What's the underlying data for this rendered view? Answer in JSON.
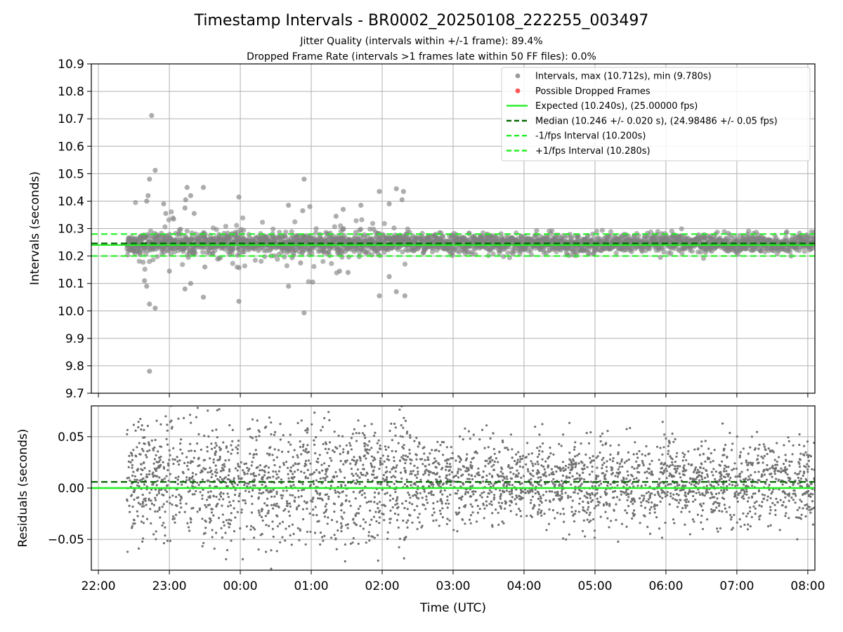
{
  "title": "Timestamp Intervals - BR0002_20250108_222255_003497",
  "subtitle_line1": "Jitter Quality (intervals within +/-1 frame): 89.4%",
  "subtitle_line2": "Dropped Frame Rate (intervals >1 frames late within 50 FF files): 0.0%",
  "colors": {
    "points": "#808080",
    "dropped": "#ff4040",
    "expected": "#22ee22",
    "median": "#006400",
    "interval": "#22ee22"
  },
  "chart_data": [
    {
      "type": "scatter",
      "panel": "intervals",
      "ylabel": "Intervals (seconds)",
      "ylim": [
        9.7,
        10.9
      ],
      "yticks": [
        9.7,
        9.8,
        9.9,
        10.0,
        10.1,
        10.2,
        10.3,
        10.4,
        10.5,
        10.6,
        10.7,
        10.8,
        10.9
      ],
      "ytick_labels": [
        "9.7",
        "9.8",
        "9.9",
        "10.0",
        "10.1",
        "10.2",
        "10.3",
        "10.4",
        "10.5",
        "10.6",
        "10.7",
        "10.8",
        "10.9"
      ],
      "xlim_hours": [
        -2.1,
        8.1
      ],
      "grid": true,
      "legend_position": "top-right",
      "legend": [
        {
          "label": "Intervals, max (10.712s), min (9.780s)",
          "kind": "dot",
          "color": "#999999"
        },
        {
          "label": "Possible Dropped Frames",
          "kind": "dot",
          "color": "#ff5555"
        },
        {
          "label": "Expected (10.240s), (25.00000 fps)",
          "kind": "solid",
          "color": "#22ee22"
        },
        {
          "label": "Median (10.246 +/- 0.020 s), (24.98486 +/- 0.05 fps)",
          "kind": "dashed",
          "color": "#006400"
        },
        {
          "label": "-1/fps Interval (10.200s)",
          "kind": "dashed",
          "color": "#22ee22"
        },
        {
          "label": "+1/fps Interval (10.280s)",
          "kind": "dashed",
          "color": "#22ee22"
        }
      ],
      "lines": {
        "expected": 10.24,
        "median": 10.246,
        "minus_one_fps": 10.2,
        "plus_one_fps": 10.28
      },
      "series_range_hours": [
        -1.6,
        8.1
      ],
      "max_interval": 10.712,
      "min_interval": 9.78,
      "outliers": [
        {
          "x": -1.25,
          "y": 10.712
        },
        {
          "x": -1.2,
          "y": 10.512
        },
        {
          "x": -1.28,
          "y": 10.48
        },
        {
          "x": -1.3,
          "y": 10.42
        },
        {
          "x": -1.32,
          "y": 10.4
        },
        {
          "x": -1.28,
          "y": 9.78
        },
        {
          "x": -1.2,
          "y": 10.01
        },
        {
          "x": -1.28,
          "y": 10.025
        },
        {
          "x": -1.32,
          "y": 10.09
        },
        {
          "x": -1.35,
          "y": 10.11
        },
        {
          "x": -1.08,
          "y": 10.39
        },
        {
          "x": -1.05,
          "y": 10.355
        },
        {
          "x": -0.75,
          "y": 10.45
        },
        {
          "x": -0.7,
          "y": 10.42
        },
        {
          "x": -0.77,
          "y": 10.405
        },
        {
          "x": -0.78,
          "y": 10.375
        },
        {
          "x": -0.65,
          "y": 10.355
        },
        {
          "x": -0.52,
          "y": 10.45
        },
        {
          "x": -0.52,
          "y": 10.05
        },
        {
          "x": -0.78,
          "y": 10.08
        },
        {
          "x": -0.7,
          "y": 10.1
        },
        {
          "x": -0.02,
          "y": 10.415
        },
        {
          "x": -0.02,
          "y": 10.035
        },
        {
          "x": 0.68,
          "y": 10.385
        },
        {
          "x": 0.68,
          "y": 10.09
        },
        {
          "x": 0.9,
          "y": 10.48
        },
        {
          "x": 0.88,
          "y": 10.365
        },
        {
          "x": 0.98,
          "y": 10.38
        },
        {
          "x": 0.9,
          "y": 9.993
        },
        {
          "x": 1.02,
          "y": 10.105
        },
        {
          "x": 1.35,
          "y": 10.345
        },
        {
          "x": 1.45,
          "y": 10.37
        },
        {
          "x": 1.7,
          "y": 10.385
        },
        {
          "x": 1.96,
          "y": 10.435
        },
        {
          "x": 1.96,
          "y": 10.055
        },
        {
          "x": 2.1,
          "y": 10.39
        },
        {
          "x": 2.2,
          "y": 10.445
        },
        {
          "x": 2.3,
          "y": 10.435
        },
        {
          "x": 2.28,
          "y": 10.405
        },
        {
          "x": 2.1,
          "y": 10.125
        },
        {
          "x": 2.2,
          "y": 10.07
        },
        {
          "x": 2.32,
          "y": 10.055
        },
        {
          "x": 1.52,
          "y": 10.14
        },
        {
          "x": 1.4,
          "y": 10.145
        },
        {
          "x": 0.85,
          "y": 10.175
        },
        {
          "x": -1.0,
          "y": 10.145
        },
        {
          "x": -0.5,
          "y": 10.16
        }
      ]
    },
    {
      "type": "scatter",
      "panel": "residuals",
      "ylabel": "Residuals (seconds)",
      "xlabel": "Time (UTC)",
      "ylim": [
        -0.08,
        0.08
      ],
      "yticks": [
        -0.05,
        0.0,
        0.05
      ],
      "ytick_labels": [
        "−0.05",
        "0.00",
        "0.05"
      ],
      "xlim_hours": [
        -2.1,
        8.1
      ],
      "xticks_hours": [
        -2,
        -1,
        0,
        1,
        2,
        3,
        4,
        5,
        6,
        7,
        8
      ],
      "xtick_labels": [
        "22:00",
        "23:00",
        "00:00",
        "01:00",
        "02:00",
        "03:00",
        "04:00",
        "05:00",
        "06:00",
        "07:00",
        "08:00"
      ],
      "grid": true,
      "lines": {
        "zero": 0.0,
        "median_offset": 0.006
      },
      "series_range_hours": [
        -1.6,
        8.1
      ],
      "residual_std": 0.02
    }
  ]
}
